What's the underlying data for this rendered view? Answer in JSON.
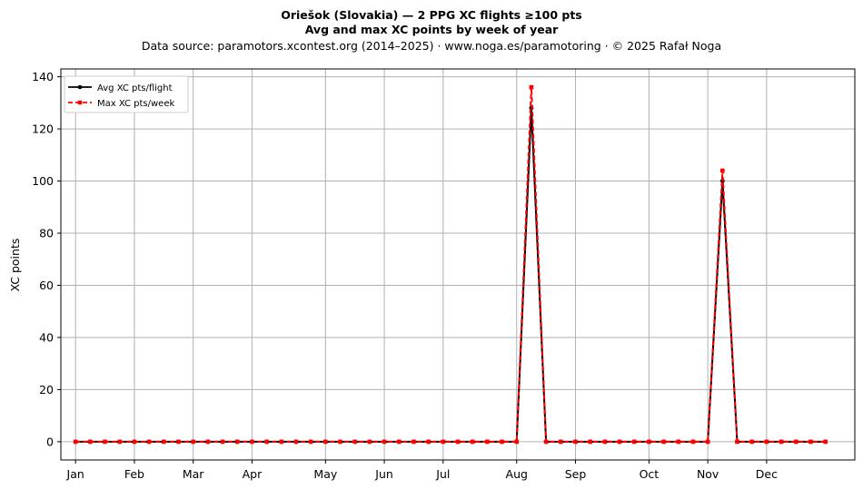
{
  "chart_data": {
    "type": "line",
    "title": "Oriešok (Slovakia)  —  2 PPG XC flights ≥100 pts",
    "subtitle": "Avg and max XC points by week of year",
    "source_note": "Data source: paramotors.xcontest.org (2014–2025)  ·  www.noga.es/paramotoring  ·  © 2025 Rafał Noga",
    "xlabel": "",
    "ylabel": "XC points",
    "xlim": [
      0,
      54
    ],
    "ylim": [
      -7,
      143
    ],
    "grid": true,
    "legend_position": "top-left",
    "x_ticks": [
      {
        "label": "Jan",
        "x": 1
      },
      {
        "label": "Feb",
        "x": 5
      },
      {
        "label": "Mar",
        "x": 9
      },
      {
        "label": "Apr",
        "x": 13
      },
      {
        "label": "May",
        "x": 18
      },
      {
        "label": "Jun",
        "x": 22
      },
      {
        "label": "Jul",
        "x": 26
      },
      {
        "label": "Aug",
        "x": 31
      },
      {
        "label": "Sep",
        "x": 35
      },
      {
        "label": "Oct",
        "x": 40
      },
      {
        "label": "Nov",
        "x": 44
      },
      {
        "label": "Dec",
        "x": 48
      }
    ],
    "y_ticks": [
      0,
      20,
      40,
      60,
      80,
      100,
      120,
      140
    ],
    "x": [
      1,
      2,
      3,
      4,
      5,
      6,
      7,
      8,
      9,
      10,
      11,
      12,
      13,
      14,
      15,
      16,
      17,
      18,
      19,
      20,
      21,
      22,
      23,
      24,
      25,
      26,
      27,
      28,
      29,
      30,
      31,
      32,
      33,
      34,
      35,
      36,
      37,
      38,
      39,
      40,
      41,
      42,
      43,
      44,
      45,
      46,
      47,
      48,
      49,
      50,
      51,
      52
    ],
    "series": [
      {
        "name": "Avg XC pts/flight",
        "color": "#000000",
        "marker": "circle",
        "style": "solid",
        "values": [
          0,
          0,
          0,
          0,
          0,
          0,
          0,
          0,
          0,
          0,
          0,
          0,
          0,
          0,
          0,
          0,
          0,
          0,
          0,
          0,
          0,
          0,
          0,
          0,
          0,
          0,
          0,
          0,
          0,
          0,
          0,
          128,
          0,
          0,
          0,
          0,
          0,
          0,
          0,
          0,
          0,
          0,
          0,
          0,
          100,
          0,
          0,
          0,
          0,
          0,
          0,
          0
        ]
      },
      {
        "name": "Max XC pts/week",
        "color": "#ff0000",
        "marker": "square",
        "style": "dashed",
        "values": [
          0,
          0,
          0,
          0,
          0,
          0,
          0,
          0,
          0,
          0,
          0,
          0,
          0,
          0,
          0,
          0,
          0,
          0,
          0,
          0,
          0,
          0,
          0,
          0,
          0,
          0,
          0,
          0,
          0,
          0,
          0,
          136,
          0,
          0,
          0,
          0,
          0,
          0,
          0,
          0,
          0,
          0,
          0,
          0,
          104,
          0,
          0,
          0,
          0,
          0,
          0,
          0
        ]
      }
    ]
  }
}
